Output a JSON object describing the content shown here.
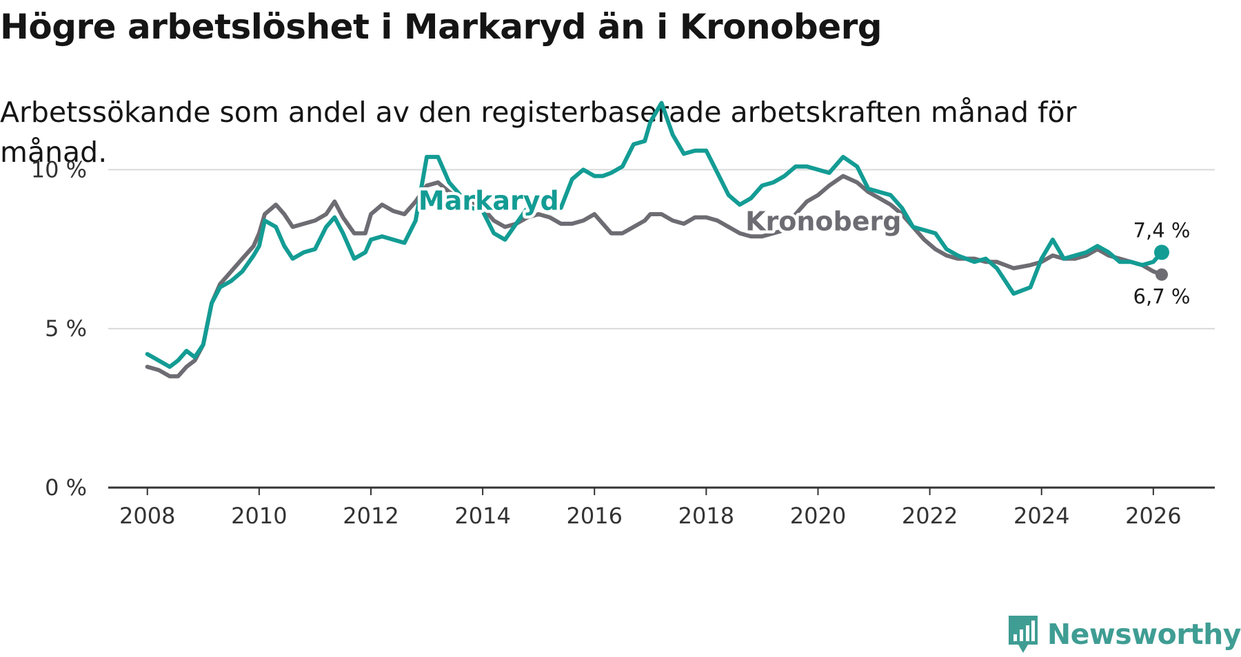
{
  "title": "Högre arbetslöshet i Markaryd än i Kronoberg",
  "subtitle": "Arbetssökande som andel av den registerbaserade arbetskraften månad för månad.",
  "brand": {
    "name": "Newsworthy"
  },
  "colors": {
    "markaryd": "#139c94",
    "kronoberg": "#6e6c73",
    "grid": "#d9d9d9",
    "axis": "#333333",
    "brand": "#3f9d93"
  },
  "chart_data": {
    "type": "line",
    "title": "Högre arbetslöshet i Markaryd än i Kronoberg",
    "xlabel": "",
    "ylabel": "",
    "xlim": [
      2007.3,
      2027.1
    ],
    "ylim": [
      0,
      12.5
    ],
    "x_ticks": [
      2008,
      2010,
      2012,
      2014,
      2016,
      2018,
      2020,
      2022,
      2024,
      2026
    ],
    "x_tick_labels": [
      "2008",
      "2010",
      "2012",
      "2014",
      "2016",
      "2018",
      "2020",
      "2022",
      "2024",
      "2026"
    ],
    "y_ticks": [
      0,
      5,
      10
    ],
    "y_tick_labels": [
      "0 %",
      "5 %",
      "10 %"
    ],
    "series": [
      {
        "name": "Kronoberg",
        "label": "Kronoberg",
        "color_key": "kronoberg",
        "end_label": "6,7 %",
        "points": [
          [
            2008.0,
            3.8
          ],
          [
            2008.2,
            3.7
          ],
          [
            2008.4,
            3.5
          ],
          [
            2008.55,
            3.5
          ],
          [
            2008.7,
            3.8
          ],
          [
            2008.85,
            4.0
          ],
          [
            2009.0,
            4.5
          ],
          [
            2009.15,
            5.8
          ],
          [
            2009.3,
            6.4
          ],
          [
            2009.5,
            6.8
          ],
          [
            2009.7,
            7.2
          ],
          [
            2009.9,
            7.6
          ],
          [
            2010.0,
            8.0
          ],
          [
            2010.1,
            8.6
          ],
          [
            2010.3,
            8.9
          ],
          [
            2010.45,
            8.6
          ],
          [
            2010.6,
            8.2
          ],
          [
            2010.8,
            8.3
          ],
          [
            2011.0,
            8.4
          ],
          [
            2011.2,
            8.6
          ],
          [
            2011.35,
            9.0
          ],
          [
            2011.5,
            8.5
          ],
          [
            2011.7,
            8.0
          ],
          [
            2011.9,
            8.0
          ],
          [
            2012.0,
            8.6
          ],
          [
            2012.2,
            8.9
          ],
          [
            2012.4,
            8.7
          ],
          [
            2012.6,
            8.6
          ],
          [
            2012.8,
            9.0
          ],
          [
            2013.0,
            9.5
          ],
          [
            2013.2,
            9.6
          ],
          [
            2013.4,
            9.3
          ],
          [
            2013.6,
            9.1
          ],
          [
            2013.8,
            9.0
          ],
          [
            2014.0,
            8.8
          ],
          [
            2014.2,
            8.4
          ],
          [
            2014.4,
            8.2
          ],
          [
            2014.6,
            8.3
          ],
          [
            2014.8,
            8.5
          ],
          [
            2015.0,
            8.6
          ],
          [
            2015.2,
            8.5
          ],
          [
            2015.4,
            8.3
          ],
          [
            2015.6,
            8.3
          ],
          [
            2015.8,
            8.4
          ],
          [
            2016.0,
            8.6
          ],
          [
            2016.15,
            8.3
          ],
          [
            2016.3,
            8.0
          ],
          [
            2016.5,
            8.0
          ],
          [
            2016.7,
            8.2
          ],
          [
            2016.9,
            8.4
          ],
          [
            2017.0,
            8.6
          ],
          [
            2017.2,
            8.6
          ],
          [
            2017.4,
            8.4
          ],
          [
            2017.6,
            8.3
          ],
          [
            2017.8,
            8.5
          ],
          [
            2018.0,
            8.5
          ],
          [
            2018.2,
            8.4
          ],
          [
            2018.4,
            8.2
          ],
          [
            2018.6,
            8.0
          ],
          [
            2018.8,
            7.9
          ],
          [
            2019.0,
            7.9
          ],
          [
            2019.2,
            8.0
          ],
          [
            2019.4,
            8.1
          ],
          [
            2019.6,
            8.6
          ],
          [
            2019.8,
            9.0
          ],
          [
            2020.0,
            9.2
          ],
          [
            2020.2,
            9.5
          ],
          [
            2020.45,
            9.8
          ],
          [
            2020.7,
            9.6
          ],
          [
            2020.9,
            9.3
          ],
          [
            2021.1,
            9.1
          ],
          [
            2021.3,
            8.9
          ],
          [
            2021.5,
            8.6
          ],
          [
            2021.7,
            8.2
          ],
          [
            2021.9,
            7.8
          ],
          [
            2022.1,
            7.5
          ],
          [
            2022.3,
            7.3
          ],
          [
            2022.5,
            7.2
          ],
          [
            2022.8,
            7.2
          ],
          [
            2023.0,
            7.1
          ],
          [
            2023.2,
            7.1
          ],
          [
            2023.5,
            6.9
          ],
          [
            2023.8,
            7.0
          ],
          [
            2024.0,
            7.1
          ],
          [
            2024.2,
            7.3
          ],
          [
            2024.4,
            7.2
          ],
          [
            2024.6,
            7.2
          ],
          [
            2024.8,
            7.3
          ],
          [
            2025.0,
            7.5
          ],
          [
            2025.2,
            7.3
          ],
          [
            2025.4,
            7.2
          ],
          [
            2025.6,
            7.1
          ],
          [
            2025.8,
            7.0
          ],
          [
            2026.0,
            6.8
          ],
          [
            2026.15,
            6.7
          ]
        ]
      },
      {
        "name": "Markaryd",
        "label": "Markaryd",
        "color_key": "markaryd",
        "end_label": "7,4 %",
        "points": [
          [
            2008.0,
            4.2
          ],
          [
            2008.2,
            4.0
          ],
          [
            2008.4,
            3.8
          ],
          [
            2008.55,
            4.0
          ],
          [
            2008.7,
            4.3
          ],
          [
            2008.85,
            4.1
          ],
          [
            2009.0,
            4.5
          ],
          [
            2009.15,
            5.8
          ],
          [
            2009.3,
            6.3
          ],
          [
            2009.5,
            6.5
          ],
          [
            2009.7,
            6.8
          ],
          [
            2009.9,
            7.3
          ],
          [
            2010.0,
            7.6
          ],
          [
            2010.1,
            8.4
          ],
          [
            2010.3,
            8.2
          ],
          [
            2010.45,
            7.6
          ],
          [
            2010.6,
            7.2
          ],
          [
            2010.8,
            7.4
          ],
          [
            2011.0,
            7.5
          ],
          [
            2011.2,
            8.2
          ],
          [
            2011.35,
            8.5
          ],
          [
            2011.5,
            8.0
          ],
          [
            2011.7,
            7.2
          ],
          [
            2011.9,
            7.4
          ],
          [
            2012.0,
            7.8
          ],
          [
            2012.2,
            7.9
          ],
          [
            2012.4,
            7.8
          ],
          [
            2012.6,
            7.7
          ],
          [
            2012.8,
            8.4
          ],
          [
            2013.0,
            10.4
          ],
          [
            2013.2,
            10.4
          ],
          [
            2013.4,
            9.6
          ],
          [
            2013.6,
            9.2
          ],
          [
            2013.8,
            8.8
          ],
          [
            2014.0,
            8.7
          ],
          [
            2014.2,
            8.0
          ],
          [
            2014.4,
            7.8
          ],
          [
            2014.6,
            8.3
          ],
          [
            2014.8,
            8.8
          ],
          [
            2015.0,
            9.2
          ],
          [
            2015.2,
            9.0
          ],
          [
            2015.4,
            8.8
          ],
          [
            2015.6,
            9.7
          ],
          [
            2015.8,
            10.0
          ],
          [
            2016.0,
            9.8
          ],
          [
            2016.15,
            9.8
          ],
          [
            2016.3,
            9.9
          ],
          [
            2016.5,
            10.1
          ],
          [
            2016.7,
            10.8
          ],
          [
            2016.9,
            10.9
          ],
          [
            2017.0,
            11.5
          ],
          [
            2017.2,
            12.1
          ],
          [
            2017.4,
            11.1
          ],
          [
            2017.6,
            10.5
          ],
          [
            2017.8,
            10.6
          ],
          [
            2018.0,
            10.6
          ],
          [
            2018.2,
            9.9
          ],
          [
            2018.4,
            9.2
          ],
          [
            2018.6,
            8.9
          ],
          [
            2018.8,
            9.1
          ],
          [
            2019.0,
            9.5
          ],
          [
            2019.2,
            9.6
          ],
          [
            2019.4,
            9.8
          ],
          [
            2019.6,
            10.1
          ],
          [
            2019.8,
            10.1
          ],
          [
            2020.0,
            10.0
          ],
          [
            2020.2,
            9.9
          ],
          [
            2020.45,
            10.4
          ],
          [
            2020.7,
            10.1
          ],
          [
            2020.9,
            9.4
          ],
          [
            2021.1,
            9.3
          ],
          [
            2021.3,
            9.2
          ],
          [
            2021.5,
            8.8
          ],
          [
            2021.7,
            8.2
          ],
          [
            2021.9,
            8.1
          ],
          [
            2022.1,
            8.0
          ],
          [
            2022.3,
            7.5
          ],
          [
            2022.5,
            7.3
          ],
          [
            2022.8,
            7.1
          ],
          [
            2023.0,
            7.2
          ],
          [
            2023.2,
            6.9
          ],
          [
            2023.5,
            6.1
          ],
          [
            2023.8,
            6.3
          ],
          [
            2024.0,
            7.2
          ],
          [
            2024.2,
            7.8
          ],
          [
            2024.4,
            7.2
          ],
          [
            2024.6,
            7.3
          ],
          [
            2024.8,
            7.4
          ],
          [
            2025.0,
            7.6
          ],
          [
            2025.2,
            7.4
          ],
          [
            2025.4,
            7.1
          ],
          [
            2025.6,
            7.1
          ],
          [
            2025.8,
            7.0
          ],
          [
            2026.0,
            7.1
          ],
          [
            2026.15,
            7.4
          ]
        ]
      }
    ]
  }
}
